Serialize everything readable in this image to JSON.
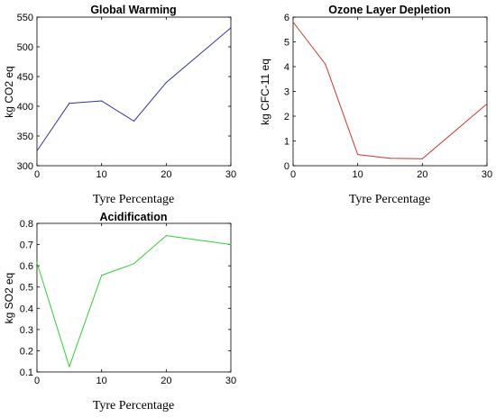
{
  "chart_data": [
    {
      "type": "line",
      "title": "Global Warming",
      "xlabel": "Tyre Percentage",
      "ylabel": "kg CO2 eq",
      "x": [
        0,
        5,
        10,
        15,
        20,
        30
      ],
      "series": [
        {
          "values": [
            325,
            405,
            409,
            375,
            440,
            532
          ]
        }
      ],
      "xlim": [
        0,
        30
      ],
      "ylim": [
        300,
        550
      ],
      "xticks": [
        0,
        10,
        20,
        30
      ],
      "yticks": [
        300,
        350,
        400,
        450,
        500,
        550
      ],
      "color": "#2f2fa8",
      "grid": false
    },
    {
      "type": "line",
      "title": "Ozone Layer Depletion",
      "xlabel": "Tyre Percentage",
      "ylabel": "kg CFC-11 eq",
      "x": [
        0,
        5,
        10,
        15,
        20,
        30
      ],
      "series": [
        {
          "values": [
            5.8,
            4.1,
            0.45,
            0.3,
            0.28,
            2.5
          ]
        }
      ],
      "xlim": [
        0,
        30
      ],
      "ylim": [
        0,
        6
      ],
      "xticks": [
        0,
        10,
        20,
        30
      ],
      "yticks": [
        0,
        1,
        2,
        3,
        4,
        5,
        6
      ],
      "color": "#cc3333",
      "grid": false
    },
    {
      "type": "line",
      "title": "Acidification",
      "xlabel": "Tyre Percentage",
      "ylabel": "kg SO2 eq",
      "x": [
        0,
        5,
        10,
        15,
        20,
        30
      ],
      "series": [
        {
          "values": [
            0.615,
            0.125,
            0.555,
            0.61,
            0.742,
            0.7
          ]
        }
      ],
      "xlim": [
        0,
        30
      ],
      "ylim": [
        0.1,
        0.8
      ],
      "xticks": [
        0,
        10,
        20,
        30
      ],
      "yticks": [
        0.1,
        0.2,
        0.3,
        0.4,
        0.5,
        0.6,
        0.7,
        0.8
      ],
      "color": "#33cc33",
      "grid": false
    }
  ]
}
